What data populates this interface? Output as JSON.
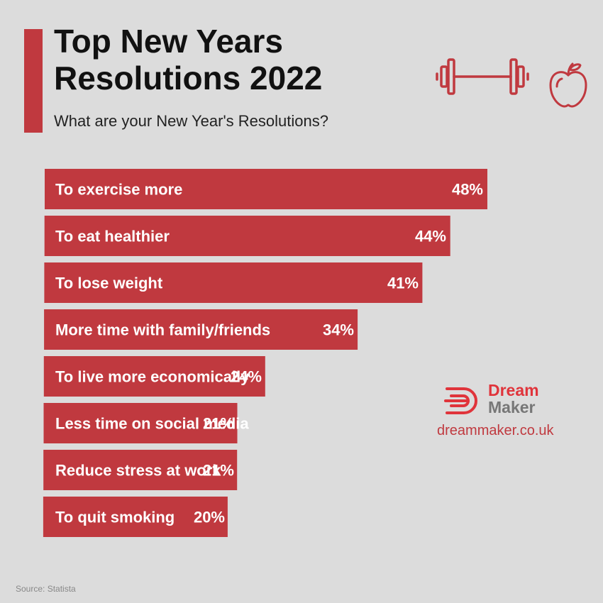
{
  "header": {
    "title": "Top New Years Resolutions 2022",
    "subtitle": "What are your New Year's Resolutions?"
  },
  "icons": [
    "dumbbell-icon",
    "apple-icon"
  ],
  "colors": {
    "bar": "#c0393f",
    "accent": "#c0393f",
    "background": "#dcdcdc",
    "brand_red": "#e0343b",
    "brand_gray": "#777777"
  },
  "chart_data": {
    "type": "bar",
    "orientation": "horizontal",
    "title": "Top New Years Resolutions 2022",
    "subtitle": "What are your New Year's Resolutions?",
    "categories": [
      "To exercise more",
      "To eat healthier",
      "To lose weight",
      "More time with family/friends",
      "To live more economically",
      "Less time on social media",
      "Reduce stress at work",
      "To quit smoking"
    ],
    "values": [
      48,
      44,
      41,
      34,
      24,
      21,
      21,
      20
    ],
    "value_labels": [
      "48%",
      "44%",
      "41%",
      "34%",
      "24%",
      "21%",
      "21%",
      "20%"
    ],
    "unit": "%",
    "grid": false,
    "legend": "none"
  },
  "brand": {
    "name_line1": "Dream",
    "name_line2": "Maker",
    "url": "dreammaker.co.uk"
  },
  "footer": {
    "source": "Source: Statista"
  }
}
